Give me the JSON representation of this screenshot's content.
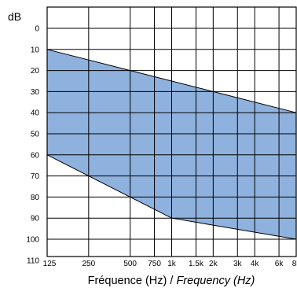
{
  "chart_data": {
    "type": "area",
    "y_unit_label": "dB",
    "x_axis_label": {
      "french": "Fréquence (Hz) / ",
      "english": "Frequency (Hz)"
    },
    "x_scale": "log",
    "y_inverted": true,
    "ylim": [
      0,
      110
    ],
    "y_ticks": [
      "0",
      "10",
      "20",
      "30",
      "40",
      "50",
      "60",
      "70",
      "80",
      "90",
      "100",
      "110"
    ],
    "x_ticks": [
      {
        "label": "125",
        "hz": 125
      },
      {
        "label": "250",
        "hz": 250
      },
      {
        "label": "500",
        "hz": 500
      },
      {
        "label": "750",
        "hz": 750
      },
      {
        "label": "1k",
        "hz": 1000
      },
      {
        "label": "1.5k",
        "hz": 1500
      },
      {
        "label": "2k",
        "hz": 2000
      },
      {
        "label": "3k",
        "hz": 3000
      },
      {
        "label": "4k",
        "hz": 4000
      },
      {
        "label": "6k",
        "hz": 6000
      },
      {
        "label": "8k",
        "hz": 8000
      }
    ],
    "grid": true,
    "fill_color": "#8fb1dd",
    "upper_boundary": [
      {
        "hz": 125,
        "db": 10
      },
      {
        "hz": 500,
        "db": 20
      },
      {
        "hz": 2000,
        "db": 30
      },
      {
        "hz": 8000,
        "db": 40
      }
    ],
    "lower_boundary": [
      {
        "hz": 125,
        "db": 60
      },
      {
        "hz": 250,
        "db": 70
      },
      {
        "hz": 500,
        "db": 80
      },
      {
        "hz": 1000,
        "db": 90
      },
      {
        "hz": 8000,
        "db": 100
      }
    ]
  }
}
